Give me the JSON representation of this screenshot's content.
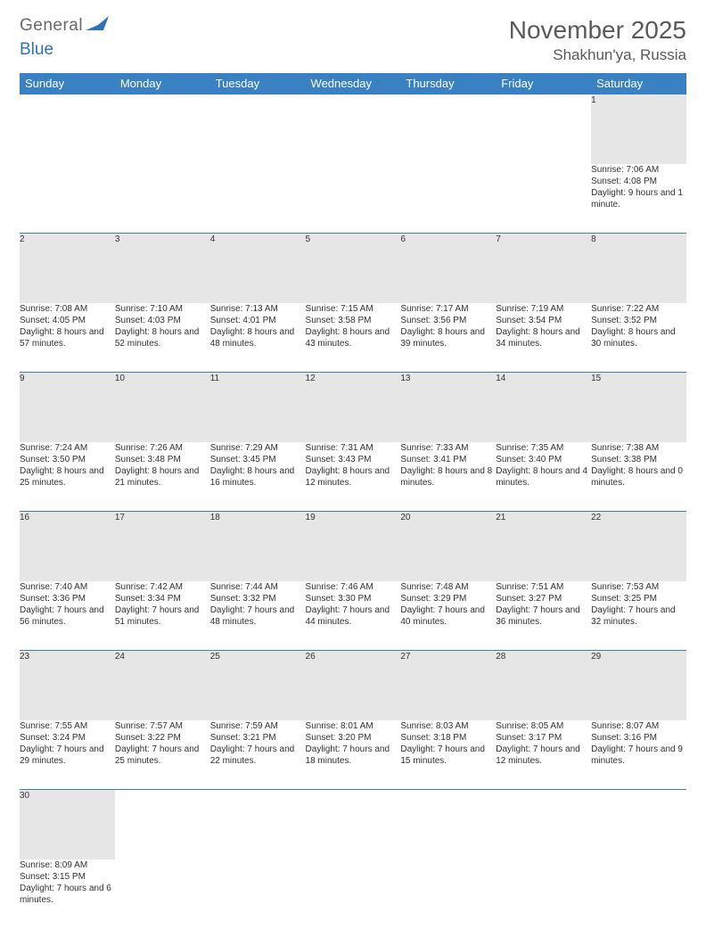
{
  "brand": {
    "general": "General",
    "blue": "Blue"
  },
  "title": "November 2025",
  "location": "Shakhun'ya, Russia",
  "colors": {
    "header_bg": "#3a81c4",
    "header_text": "#ffffff",
    "daynum_bg": "#e6e6e6",
    "rule": "#3a81c4",
    "text": "#444444",
    "title_text": "#5a5a5a"
  },
  "weekdays": [
    "Sunday",
    "Monday",
    "Tuesday",
    "Wednesday",
    "Thursday",
    "Friday",
    "Saturday"
  ],
  "weeks": [
    [
      null,
      null,
      null,
      null,
      null,
      null,
      {
        "n": "1",
        "sr": "Sunrise: 7:06 AM",
        "ss": "Sunset: 4:08 PM",
        "dl": "Daylight: 9 hours and 1 minute."
      }
    ],
    [
      {
        "n": "2",
        "sr": "Sunrise: 7:08 AM",
        "ss": "Sunset: 4:05 PM",
        "dl": "Daylight: 8 hours and 57 minutes."
      },
      {
        "n": "3",
        "sr": "Sunrise: 7:10 AM",
        "ss": "Sunset: 4:03 PM",
        "dl": "Daylight: 8 hours and 52 minutes."
      },
      {
        "n": "4",
        "sr": "Sunrise: 7:13 AM",
        "ss": "Sunset: 4:01 PM",
        "dl": "Daylight: 8 hours and 48 minutes."
      },
      {
        "n": "5",
        "sr": "Sunrise: 7:15 AM",
        "ss": "Sunset: 3:58 PM",
        "dl": "Daylight: 8 hours and 43 minutes."
      },
      {
        "n": "6",
        "sr": "Sunrise: 7:17 AM",
        "ss": "Sunset: 3:56 PM",
        "dl": "Daylight: 8 hours and 39 minutes."
      },
      {
        "n": "7",
        "sr": "Sunrise: 7:19 AM",
        "ss": "Sunset: 3:54 PM",
        "dl": "Daylight: 8 hours and 34 minutes."
      },
      {
        "n": "8",
        "sr": "Sunrise: 7:22 AM",
        "ss": "Sunset: 3:52 PM",
        "dl": "Daylight: 8 hours and 30 minutes."
      }
    ],
    [
      {
        "n": "9",
        "sr": "Sunrise: 7:24 AM",
        "ss": "Sunset: 3:50 PM",
        "dl": "Daylight: 8 hours and 25 minutes."
      },
      {
        "n": "10",
        "sr": "Sunrise: 7:26 AM",
        "ss": "Sunset: 3:48 PM",
        "dl": "Daylight: 8 hours and 21 minutes."
      },
      {
        "n": "11",
        "sr": "Sunrise: 7:29 AM",
        "ss": "Sunset: 3:45 PM",
        "dl": "Daylight: 8 hours and 16 minutes."
      },
      {
        "n": "12",
        "sr": "Sunrise: 7:31 AM",
        "ss": "Sunset: 3:43 PM",
        "dl": "Daylight: 8 hours and 12 minutes."
      },
      {
        "n": "13",
        "sr": "Sunrise: 7:33 AM",
        "ss": "Sunset: 3:41 PM",
        "dl": "Daylight: 8 hours and 8 minutes."
      },
      {
        "n": "14",
        "sr": "Sunrise: 7:35 AM",
        "ss": "Sunset: 3:40 PM",
        "dl": "Daylight: 8 hours and 4 minutes."
      },
      {
        "n": "15",
        "sr": "Sunrise: 7:38 AM",
        "ss": "Sunset: 3:38 PM",
        "dl": "Daylight: 8 hours and 0 minutes."
      }
    ],
    [
      {
        "n": "16",
        "sr": "Sunrise: 7:40 AM",
        "ss": "Sunset: 3:36 PM",
        "dl": "Daylight: 7 hours and 56 minutes."
      },
      {
        "n": "17",
        "sr": "Sunrise: 7:42 AM",
        "ss": "Sunset: 3:34 PM",
        "dl": "Daylight: 7 hours and 51 minutes."
      },
      {
        "n": "18",
        "sr": "Sunrise: 7:44 AM",
        "ss": "Sunset: 3:32 PM",
        "dl": "Daylight: 7 hours and 48 minutes."
      },
      {
        "n": "19",
        "sr": "Sunrise: 7:46 AM",
        "ss": "Sunset: 3:30 PM",
        "dl": "Daylight: 7 hours and 44 minutes."
      },
      {
        "n": "20",
        "sr": "Sunrise: 7:48 AM",
        "ss": "Sunset: 3:29 PM",
        "dl": "Daylight: 7 hours and 40 minutes."
      },
      {
        "n": "21",
        "sr": "Sunrise: 7:51 AM",
        "ss": "Sunset: 3:27 PM",
        "dl": "Daylight: 7 hours and 36 minutes."
      },
      {
        "n": "22",
        "sr": "Sunrise: 7:53 AM",
        "ss": "Sunset: 3:25 PM",
        "dl": "Daylight: 7 hours and 32 minutes."
      }
    ],
    [
      {
        "n": "23",
        "sr": "Sunrise: 7:55 AM",
        "ss": "Sunset: 3:24 PM",
        "dl": "Daylight: 7 hours and 29 minutes."
      },
      {
        "n": "24",
        "sr": "Sunrise: 7:57 AM",
        "ss": "Sunset: 3:22 PM",
        "dl": "Daylight: 7 hours and 25 minutes."
      },
      {
        "n": "25",
        "sr": "Sunrise: 7:59 AM",
        "ss": "Sunset: 3:21 PM",
        "dl": "Daylight: 7 hours and 22 minutes."
      },
      {
        "n": "26",
        "sr": "Sunrise: 8:01 AM",
        "ss": "Sunset: 3:20 PM",
        "dl": "Daylight: 7 hours and 18 minutes."
      },
      {
        "n": "27",
        "sr": "Sunrise: 8:03 AM",
        "ss": "Sunset: 3:18 PM",
        "dl": "Daylight: 7 hours and 15 minutes."
      },
      {
        "n": "28",
        "sr": "Sunrise: 8:05 AM",
        "ss": "Sunset: 3:17 PM",
        "dl": "Daylight: 7 hours and 12 minutes."
      },
      {
        "n": "29",
        "sr": "Sunrise: 8:07 AM",
        "ss": "Sunset: 3:16 PM",
        "dl": "Daylight: 7 hours and 9 minutes."
      }
    ],
    [
      {
        "n": "30",
        "sr": "Sunrise: 8:09 AM",
        "ss": "Sunset: 3:15 PM",
        "dl": "Daylight: 7 hours and 6 minutes."
      },
      null,
      null,
      null,
      null,
      null,
      null
    ]
  ]
}
